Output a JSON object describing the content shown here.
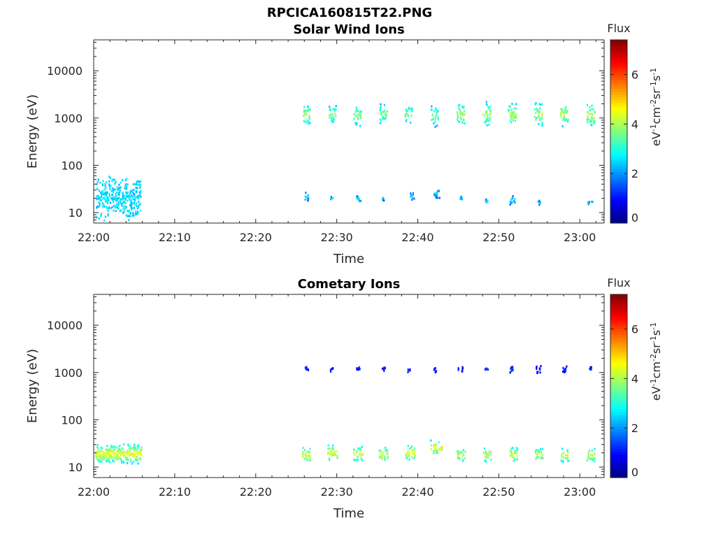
{
  "figure_title": "RPCICA160815T22.PNG",
  "chart_data": [
    {
      "type": "heatmap",
      "title": "Solar Wind Ions",
      "xlabel": "Time",
      "ylabel": "Energy (eV)",
      "x_ticks": [
        "22:00",
        "22:10",
        "22:20",
        "22:30",
        "22:40",
        "22:50",
        "23:00"
      ],
      "x_range": [
        "22:00",
        "23:03"
      ],
      "y_scale": "log",
      "y_ticks": [
        "10",
        "100",
        "1000",
        "10000"
      ],
      "y_range": [
        6,
        45000
      ],
      "colorbar": {
        "title": "Flux",
        "unit_base": "eV",
        "unit_exponent": "-1",
        "unit_cm": "cm",
        "unit_cm_exp": "-2",
        "unit_sr": "sr",
        "unit_sr_exp": "-1",
        "unit_s": "s",
        "unit_s_exp": "-1",
        "range": [
          0,
          7.4
        ],
        "ticks": [
          "0",
          "2",
          "4",
          "6"
        ]
      },
      "blobs": [
        {
          "t": "22:03",
          "e": 20,
          "flux": 2.5,
          "dur": 5.5,
          "spread": 0.5,
          "scatter": true
        },
        {
          "t": "22:26.2",
          "e": 1200,
          "flux": 4.0,
          "dur": 0.9,
          "spread": 0.25
        },
        {
          "t": "22:29.4",
          "e": 1200,
          "flux": 3.8,
          "dur": 0.9,
          "spread": 0.22
        },
        {
          "t": "22:32.5",
          "e": 1100,
          "flux": 3.8,
          "dur": 0.9,
          "spread": 0.25
        },
        {
          "t": "22:35.7",
          "e": 1200,
          "flux": 3.7,
          "dur": 0.9,
          "spread": 0.25
        },
        {
          "t": "22:38.8",
          "e": 1200,
          "flux": 3.7,
          "dur": 0.9,
          "spread": 0.22
        },
        {
          "t": "22:42",
          "e": 1100,
          "flux": 3.6,
          "dur": 0.9,
          "spread": 0.25
        },
        {
          "t": "22:45.2",
          "e": 1200,
          "flux": 4.0,
          "dur": 1.0,
          "spread": 0.28
        },
        {
          "t": "22:48.4",
          "e": 1200,
          "flux": 4.0,
          "dur": 1.0,
          "spread": 0.28
        },
        {
          "t": "22:51.6",
          "e": 1150,
          "flux": 4.0,
          "dur": 1.0,
          "spread": 0.28
        },
        {
          "t": "22:54.8",
          "e": 1200,
          "flux": 4.0,
          "dur": 1.0,
          "spread": 0.28
        },
        {
          "t": "22:58",
          "e": 1200,
          "flux": 4.1,
          "dur": 1.0,
          "spread": 0.28
        },
        {
          "t": "23:01.3",
          "e": 1150,
          "flux": 4.1,
          "dur": 1.0,
          "spread": 0.28
        },
        {
          "t": "22:26.2",
          "e": 22,
          "flux": 2.6,
          "dur": 0.5,
          "spread": 0.12
        },
        {
          "t": "22:29.3",
          "e": 20,
          "flux": 2.6,
          "dur": 0.3,
          "spread": 0.06
        },
        {
          "t": "22:32.6",
          "e": 20,
          "flux": 2.6,
          "dur": 0.6,
          "spread": 0.1
        },
        {
          "t": "22:35.7",
          "e": 20,
          "flux": 2.5,
          "dur": 0.3,
          "spread": 0.06
        },
        {
          "t": "22:39.2",
          "e": 22,
          "flux": 2.5,
          "dur": 0.6,
          "spread": 0.1
        },
        {
          "t": "22:42.2",
          "e": 25,
          "flux": 2.4,
          "dur": 0.8,
          "spread": 0.12
        },
        {
          "t": "22:45.3",
          "e": 20,
          "flux": 2.6,
          "dur": 0.3,
          "spread": 0.06
        },
        {
          "t": "22:48.4",
          "e": 17,
          "flux": 2.6,
          "dur": 0.3,
          "spread": 0.08
        },
        {
          "t": "22:51.6",
          "e": 18,
          "flux": 2.7,
          "dur": 0.7,
          "spread": 0.1
        },
        {
          "t": "22:54.9",
          "e": 16,
          "flux": 2.7,
          "dur": 0.3,
          "spread": 0.05
        },
        {
          "t": "23:01.2",
          "e": 16,
          "flux": 2.6,
          "dur": 0.6,
          "spread": 0.05
        }
      ]
    },
    {
      "type": "heatmap",
      "title": "Cometary Ions",
      "xlabel": "Time",
      "ylabel": "Energy (eV)",
      "x_ticks": [
        "22:00",
        "22:10",
        "22:20",
        "22:30",
        "22:40",
        "22:50",
        "23:00"
      ],
      "x_range": [
        "22:00",
        "23:03"
      ],
      "y_scale": "log",
      "y_ticks": [
        "10",
        "100",
        "1000",
        "10000"
      ],
      "y_range": [
        6,
        45000
      ],
      "colorbar": {
        "title": "Flux",
        "unit_base": "eV",
        "unit_exponent": "-1",
        "unit_cm": "cm",
        "unit_cm_exp": "-2",
        "unit_sr": "sr",
        "unit_sr_exp": "-1",
        "unit_s": "s",
        "unit_s_exp": "-1",
        "range": [
          0,
          7.4
        ],
        "ticks": [
          "0",
          "2",
          "4",
          "6"
        ]
      },
      "blobs": [
        {
          "t": "22:03",
          "e": 19,
          "flux": 4.6,
          "dur": 5.7,
          "spread": 0.22,
          "dense": true
        },
        {
          "t": "22:26.2",
          "e": 1200,
          "flux": 1.3,
          "dur": 0.4,
          "spread": 0.08
        },
        {
          "t": "22:29.3",
          "e": 1150,
          "flux": 1.3,
          "dur": 0.3,
          "spread": 0.05
        },
        {
          "t": "22:32.5",
          "e": 1200,
          "flux": 1.3,
          "dur": 0.5,
          "spread": 0.06
        },
        {
          "t": "22:35.7",
          "e": 1200,
          "flux": 1.3,
          "dur": 0.4,
          "spread": 0.06
        },
        {
          "t": "22:38.8",
          "e": 1100,
          "flux": 1.3,
          "dur": 0.4,
          "spread": 0.04
        },
        {
          "t": "22:42",
          "e": 1200,
          "flux": 1.3,
          "dur": 0.4,
          "spread": 0.1
        },
        {
          "t": "22:45.2",
          "e": 1150,
          "flux": 1.3,
          "dur": 0.6,
          "spread": 0.08
        },
        {
          "t": "22:48.4",
          "e": 1200,
          "flux": 1.3,
          "dur": 0.4,
          "spread": 0.04
        },
        {
          "t": "22:51.6",
          "e": 1150,
          "flux": 1.3,
          "dur": 0.6,
          "spread": 0.1
        },
        {
          "t": "22:54.8",
          "e": 1150,
          "flux": 1.3,
          "dur": 0.6,
          "spread": 0.1
        },
        {
          "t": "22:58",
          "e": 1150,
          "flux": 1.3,
          "dur": 0.6,
          "spread": 0.1
        },
        {
          "t": "23:01.3",
          "e": 1150,
          "flux": 1.3,
          "dur": 0.5,
          "spread": 0.06
        },
        {
          "t": "22:26.2",
          "e": 18,
          "flux": 4.4,
          "dur": 1.0,
          "spread": 0.2
        },
        {
          "t": "22:29.4",
          "e": 20,
          "flux": 4.5,
          "dur": 1.2,
          "spread": 0.18
        },
        {
          "t": "22:32.6",
          "e": 19,
          "flux": 4.4,
          "dur": 1.2,
          "spread": 0.18
        },
        {
          "t": "22:35.7",
          "e": 18,
          "flux": 4.3,
          "dur": 1.1,
          "spread": 0.18
        },
        {
          "t": "22:39",
          "e": 20,
          "flux": 4.6,
          "dur": 1.2,
          "spread": 0.18
        },
        {
          "t": "22:42.2",
          "e": 26,
          "flux": 4.8,
          "dur": 1.5,
          "spread": 0.15
        },
        {
          "t": "22:45.3",
          "e": 18,
          "flux": 4.2,
          "dur": 1.0,
          "spread": 0.18
        },
        {
          "t": "22:48.5",
          "e": 18,
          "flux": 4.3,
          "dur": 1.0,
          "spread": 0.18
        },
        {
          "t": "22:51.7",
          "e": 18,
          "flux": 4.4,
          "dur": 1.1,
          "spread": 0.18
        },
        {
          "t": "22:54.9",
          "e": 18,
          "flux": 4.3,
          "dur": 1.0,
          "spread": 0.16
        },
        {
          "t": "22:58.1",
          "e": 18,
          "flux": 4.3,
          "dur": 1.0,
          "spread": 0.18
        },
        {
          "t": "23:01.3",
          "e": 18,
          "flux": 4.3,
          "dur": 1.0,
          "spread": 0.18
        }
      ]
    }
  ]
}
